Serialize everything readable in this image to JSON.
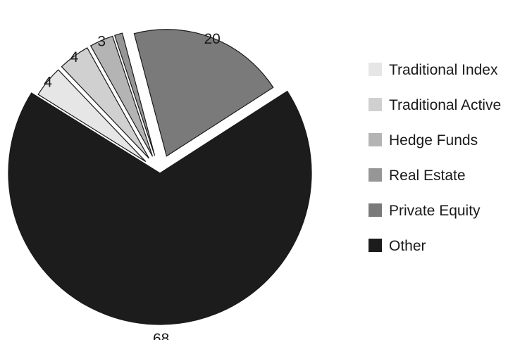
{
  "chart_data": {
    "type": "pie",
    "title": "",
    "legend_position": "right",
    "slices": [
      {
        "name": "Traditional Index",
        "value": 4,
        "label": "4",
        "color": "#e6e6e6"
      },
      {
        "name": "Traditional Active",
        "value": 4,
        "label": "4",
        "color": "#d0d0d0"
      },
      {
        "name": "Hedge Funds",
        "value": 3,
        "label": "3",
        "color": "#b4b4b4"
      },
      {
        "name": "Real Estate",
        "value": 1,
        "label": "",
        "color": "#969696"
      },
      {
        "name": "Private Equity",
        "value": 20,
        "label": "20",
        "color": "#7a7a7a"
      },
      {
        "name": "Other",
        "value": 68,
        "label": "68",
        "color": "#1c1c1c"
      }
    ]
  }
}
